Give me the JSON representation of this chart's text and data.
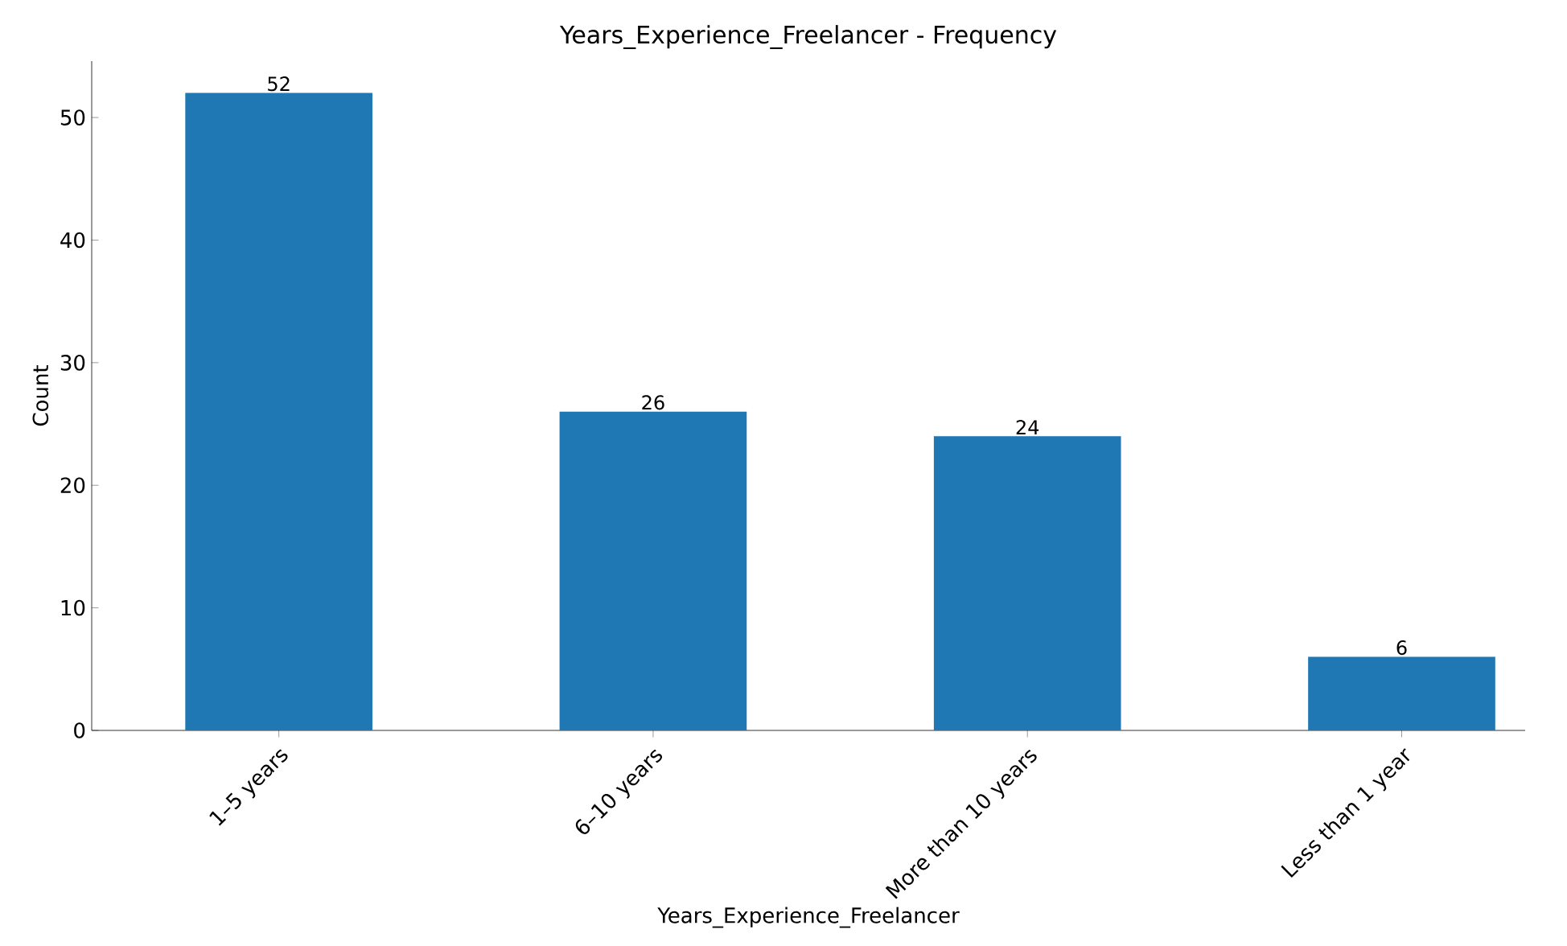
{
  "chart_data": {
    "type": "bar",
    "title": "Years_Experience_Freelancer - Frequency",
    "xlabel": "Years_Experience_Freelancer",
    "ylabel": "Count",
    "categories": [
      "1–5 years",
      "6–10 years",
      "More than 10 years",
      "Less than 1 year"
    ],
    "values": [
      52,
      26,
      24,
      6
    ],
    "color": "#1f77b4",
    "ylim": [
      0,
      54.6
    ],
    "yticks": [
      0,
      10,
      20,
      30,
      40,
      50
    ],
    "data_labels": true
  }
}
